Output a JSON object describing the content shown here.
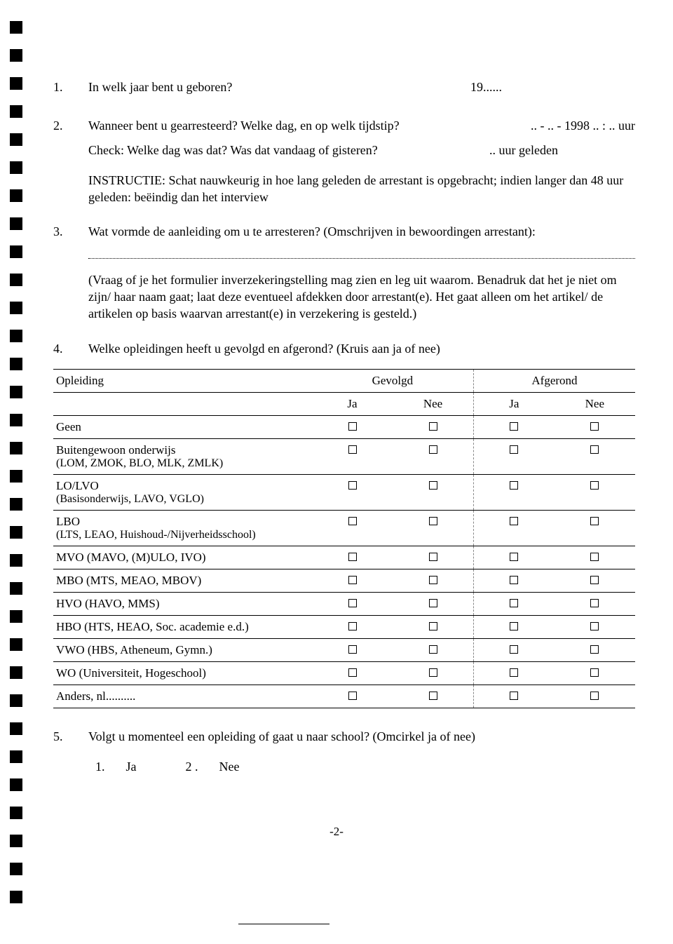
{
  "q1": {
    "num": "1.",
    "text": "In welk jaar bent u geboren?",
    "answer": "19......"
  },
  "q2": {
    "num": "2.",
    "text": "Wanneer bent u gearresteerd? Welke dag, en op welk tijdstip?",
    "answer": ".. - .. - 1998   .. : ..  uur",
    "check_text": "Check: Welke dag was dat? Was dat vandaag of gisteren?",
    "check_answer": ".. uur geleden",
    "instruction": "INSTRUCTIE: Schat nauwkeurig in hoe lang geleden de arrestant is opgebracht; indien langer dan 48 uur geleden: beëindig dan het interview"
  },
  "q3": {
    "num": "3.",
    "text": "Wat vormde de aanleiding om u te arresteren? (Omschrijven in bewoordingen arrestant):",
    "note": "(Vraag of je het formulier inverzekeringstelling mag zien en leg uit waarom. Benadruk dat het je niet om zijn/ haar naam gaat; laat deze eventueel afdekken door arrestant(e). Het gaat alleen om het artikel/ de artikelen op basis waarvan arrestant(e) in verzekering is gesteld.)"
  },
  "q4": {
    "num": "4.",
    "text": "Welke opleidingen heeft u gevolgd en afgerond? (Kruis aan ja of nee)",
    "table": {
      "col_opleiding": "Opleiding",
      "col_gevolgd": "Gevolgd",
      "col_afgerond": "Afgerond",
      "sub_ja": "Ja",
      "sub_nee": "Nee",
      "rows": [
        {
          "label": "Geen",
          "sub": ""
        },
        {
          "label": "Buitengewoon onderwijs",
          "sub": "(LOM, ZMOK, BLO, MLK, ZMLK)"
        },
        {
          "label": "LO/LVO",
          "sub": "(Basisonderwijs, LAVO, VGLO)"
        },
        {
          "label": "LBO",
          "sub": "(LTS, LEAO, Huishoud-/Nijverheidsschool)"
        },
        {
          "label": "MVO (MAVO, (M)ULO, IVO)",
          "sub": ""
        },
        {
          "label": "MBO (MTS, MEAO, MBOV)",
          "sub": ""
        },
        {
          "label": "HVO (HAVO, MMS)",
          "sub": ""
        },
        {
          "label": "HBO (HTS, HEAO, Soc. academie e.d.)",
          "sub": ""
        },
        {
          "label": "VWO (HBS, Atheneum, Gymn.)",
          "sub": ""
        },
        {
          "label": "WO (Universiteit, Hogeschool)",
          "sub": ""
        },
        {
          "label": "Anders, nl..........",
          "sub": ""
        }
      ]
    }
  },
  "q5": {
    "num": "5.",
    "text": "Volgt u momenteel een opleiding of gaat u naar school? (Omcirkel ja of nee)",
    "opt1_num": "1.",
    "opt1_label": "Ja",
    "opt2_num": "2 .",
    "opt2_label": "Nee"
  },
  "page_number": "-2-"
}
